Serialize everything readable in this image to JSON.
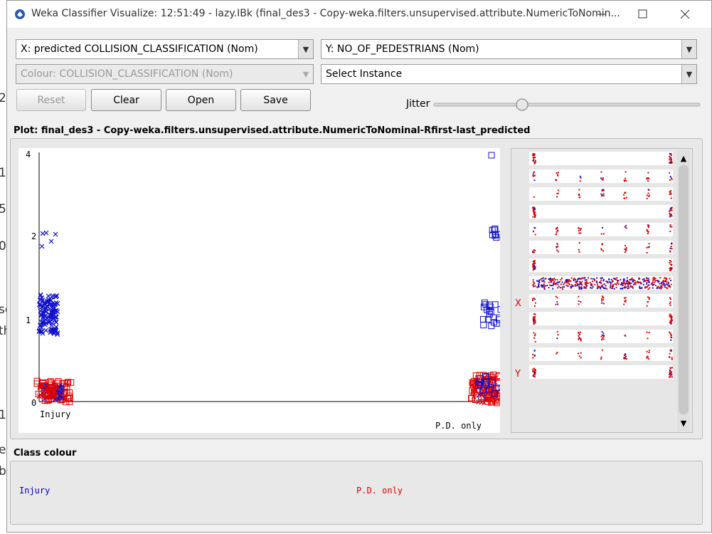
{
  "window": {
    "title": "Weka Classifier Visualize: 12:51:49 - lazy.IBk (final_des3 - Copy-weka.filters.unsupervised.attribute.NumericToNomin..."
  },
  "controls": {
    "x_select": "X: predicted COLLISION_CLASSIFICATION (Nom)",
    "y_select": "Y: NO_OF_PEDESTRIANS (Nom)",
    "colour_select": "Colour: COLLISION_CLASSIFICATION (Nom)",
    "instance_select": "Select Instance",
    "buttons": [
      "Reset",
      "Clear",
      "Open",
      "Save"
    ],
    "jitter_label": "Jitter"
  },
  "plot": {
    "title": "Plot: final_des3 - Copy-weka.filters.unsupervised.attribute.NumericToNominal-Rfirst-last_predicted",
    "y_labels": [
      "4",
      "2",
      "1",
      "0"
    ],
    "x_labels": [
      "Injury",
      "P.D. only"
    ],
    "side_labels": [
      "X",
      "Y"
    ]
  },
  "class_colour": {
    "title": "Class colour",
    "classes": [
      "Injury",
      "P.D. only"
    ]
  },
  "background_fragments": [
    "2",
    "1",
    "5",
    "0",
    "se",
    "th",
    "1",
    "e",
    "b"
  ]
}
